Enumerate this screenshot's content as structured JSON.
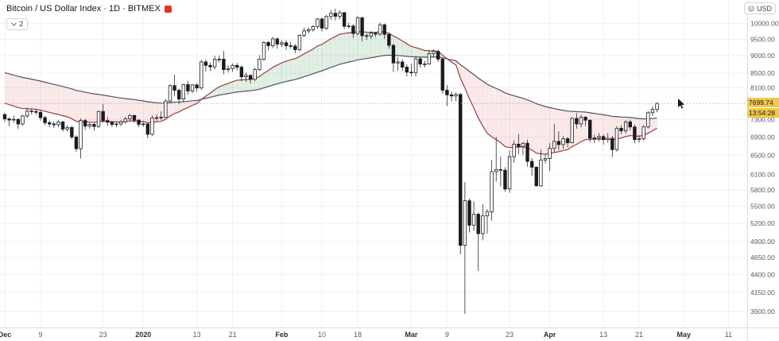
{
  "header": {
    "symbol_title": "Bitcoin / US Dollar Index · 1D · BITMEX",
    "legend_collapsed_count": "2",
    "currency_label": "USD"
  },
  "price_tag": {
    "price": "7699.74",
    "countdown": "13:54:28"
  },
  "colors": {
    "up": "#ffffff",
    "down": "#1a1a1f",
    "border": "#1a1a1f",
    "wick": "#2b2b30",
    "grid": "#eef1f6",
    "axis_text": "#565b66",
    "axis_border": "#d8dce3",
    "fast_ma": "#9c3d3d",
    "slow_ma": "#52525c",
    "fill_up": "rgba(96,169,107,0.18)",
    "fill_down": "rgba(233,124,124,0.16)",
    "last_price_line": "#9aa0a6",
    "tag_bg": "#f2c84b"
  },
  "chart_data": {
    "type": "candlestick",
    "title": "Bitcoin / US Dollar Index",
    "interval": "1D",
    "exchange": "BITMEX",
    "scale": "log",
    "last_price": 7699.74,
    "price_axis": {
      "min": 3700,
      "max": 10800,
      "labels": [
        10000,
        9500,
        9000,
        8500,
        8100,
        7700,
        7300,
        6900,
        6500,
        6100,
        5800,
        5500,
        5200,
        4900,
        4650,
        4400,
        4150,
        3900
      ]
    },
    "time_axis": {
      "ticks": [
        {
          "label": "Dec",
          "i": 0,
          "major": true
        },
        {
          "label": "9",
          "i": 8,
          "major": false
        },
        {
          "label": "23",
          "i": 22,
          "major": false
        },
        {
          "label": "2020",
          "i": 31,
          "major": true
        },
        {
          "label": "13",
          "i": 43,
          "major": false
        },
        {
          "label": "21",
          "i": 51,
          "major": false
        },
        {
          "label": "Feb",
          "i": 62,
          "major": true
        },
        {
          "label": "10",
          "i": 71,
          "major": false
        },
        {
          "label": "18",
          "i": 79,
          "major": false
        },
        {
          "label": "Mar",
          "i": 91,
          "major": true
        },
        {
          "label": "9",
          "i": 99,
          "major": false
        },
        {
          "label": "23",
          "i": 113,
          "major": false
        },
        {
          "label": "Apr",
          "i": 122,
          "major": true
        },
        {
          "label": "13",
          "i": 134,
          "major": false
        },
        {
          "label": "21",
          "i": 142,
          "major": false
        },
        {
          "label": "May",
          "i": 152,
          "major": true
        },
        {
          "label": "11",
          "i": 162,
          "major": false
        }
      ]
    },
    "indicators": {
      "fast_ma": {
        "period": 20,
        "seed": 7750
      },
      "slow_ma": {
        "period": 70,
        "seed": 8550
      }
    },
    "candles": [
      [
        7424,
        7470,
        7250,
        7320
      ],
      [
        7320,
        7350,
        7150,
        7293
      ],
      [
        7293,
        7400,
        7230,
        7310
      ],
      [
        7310,
        7330,
        7080,
        7200
      ],
      [
        7200,
        7420,
        7160,
        7390
      ],
      [
        7390,
        7590,
        7340,
        7510
      ],
      [
        7510,
        7570,
        7430,
        7500
      ],
      [
        7500,
        7560,
        7420,
        7480
      ],
      [
        7480,
        7520,
        7280,
        7350
      ],
      [
        7350,
        7390,
        7170,
        7230
      ],
      [
        7230,
        7280,
        7120,
        7200
      ],
      [
        7200,
        7260,
        7100,
        7180
      ],
      [
        7180,
        7290,
        7130,
        7250
      ],
      [
        7250,
        7270,
        7020,
        7080
      ],
      [
        7080,
        7170,
        7030,
        7120
      ],
      [
        7120,
        7150,
        6850,
        6900
      ],
      [
        6900,
        6940,
        6575,
        6640
      ],
      [
        6640,
        7330,
        6430,
        7280
      ],
      [
        7280,
        7320,
        7060,
        7150
      ],
      [
        7150,
        7230,
        7090,
        7190
      ],
      [
        7190,
        7220,
        7040,
        7140
      ],
      [
        7140,
        7520,
        7110,
        7500
      ],
      [
        7500,
        7690,
        7230,
        7280
      ],
      [
        7280,
        7360,
        7150,
        7240
      ],
      [
        7240,
        7270,
        7130,
        7190
      ],
      [
        7190,
        7240,
        7120,
        7200
      ],
      [
        7200,
        7290,
        7150,
        7250
      ],
      [
        7250,
        7370,
        7200,
        7320
      ],
      [
        7320,
        7440,
        7280,
        7400
      ],
      [
        7400,
        7430,
        7220,
        7290
      ],
      [
        7290,
        7320,
        7130,
        7190
      ],
      [
        7190,
        7260,
        7130,
        7200
      ],
      [
        7200,
        7220,
        6870,
        6960
      ],
      [
        6960,
        7400,
        6920,
        7340
      ],
      [
        7340,
        7430,
        7270,
        7350
      ],
      [
        7350,
        7500,
        7290,
        7360
      ],
      [
        7360,
        7810,
        7340,
        7760
      ],
      [
        7760,
        8200,
        7710,
        8160
      ],
      [
        8160,
        8460,
        7880,
        8040
      ],
      [
        8040,
        8080,
        7680,
        7810
      ],
      [
        7810,
        8210,
        7730,
        8190
      ],
      [
        8190,
        8290,
        7920,
        8020
      ],
      [
        8020,
        8200,
        7960,
        8180
      ],
      [
        8180,
        8230,
        8000,
        8100
      ],
      [
        8100,
        8880,
        8050,
        8820
      ],
      [
        8820,
        8890,
        8550,
        8720
      ],
      [
        8720,
        8800,
        8560,
        8680
      ],
      [
        8680,
        9000,
        8610,
        8900
      ],
      [
        8900,
        9010,
        8800,
        8900
      ],
      [
        8900,
        9150,
        8470,
        8600
      ],
      [
        8600,
        8720,
        8520,
        8630
      ],
      [
        8630,
        8780,
        8540,
        8720
      ],
      [
        8720,
        8790,
        8580,
        8670
      ],
      [
        8670,
        8730,
        8280,
        8400
      ],
      [
        8400,
        8520,
        8260,
        8440
      ],
      [
        8440,
        8470,
        8220,
        8330
      ],
      [
        8330,
        8650,
        8280,
        8600
      ],
      [
        8600,
        9020,
        8560,
        8900
      ],
      [
        8900,
        9430,
        8850,
        9400
      ],
      [
        9400,
        9440,
        9160,
        9300
      ],
      [
        9300,
        9570,
        9230,
        9510
      ],
      [
        9510,
        9550,
        9210,
        9350
      ],
      [
        9350,
        9460,
        9260,
        9390
      ],
      [
        9390,
        9470,
        9170,
        9300
      ],
      [
        9300,
        9410,
        9210,
        9290
      ],
      [
        9290,
        9350,
        9070,
        9180
      ],
      [
        9180,
        9650,
        9130,
        9620
      ],
      [
        9620,
        9860,
        9560,
        9760
      ],
      [
        9760,
        9870,
        9680,
        9800
      ],
      [
        9800,
        9950,
        9740,
        9900
      ],
      [
        9900,
        10180,
        9830,
        10150
      ],
      [
        10150,
        10190,
        9740,
        9850
      ],
      [
        9850,
        10290,
        9800,
        10230
      ],
      [
        10230,
        10460,
        10120,
        10340
      ],
      [
        10340,
        10500,
        10100,
        10240
      ],
      [
        10240,
        10440,
        10140,
        10360
      ],
      [
        10360,
        10390,
        9820,
        9910
      ],
      [
        9910,
        10030,
        9840,
        9920
      ],
      [
        9920,
        9980,
        9540,
        9680
      ],
      [
        9680,
        10250,
        9620,
        10190
      ],
      [
        10190,
        10220,
        9430,
        9610
      ],
      [
        9610,
        9690,
        9480,
        9600
      ],
      [
        9600,
        9750,
        9510,
        9690
      ],
      [
        9690,
        9730,
        9570,
        9660
      ],
      [
        9660,
        10030,
        9610,
        9960
      ],
      [
        9960,
        10000,
        9510,
        9650
      ],
      [
        9650,
        9710,
        9210,
        9310
      ],
      [
        9310,
        9360,
        8530,
        8790
      ],
      [
        8790,
        8950,
        8570,
        8820
      ],
      [
        8820,
        8890,
        8560,
        8670
      ],
      [
        8670,
        8750,
        8410,
        8530
      ],
      [
        8530,
        8770,
        8420,
        8520
      ],
      [
        8520,
        8960,
        8410,
        8910
      ],
      [
        8910,
        8960,
        8660,
        8760
      ],
      [
        8760,
        8850,
        8660,
        8760
      ],
      [
        8760,
        9170,
        8740,
        9060
      ],
      [
        9060,
        9190,
        8980,
        9130
      ],
      [
        9130,
        9180,
        8820,
        8900
      ],
      [
        8900,
        8950,
        7950,
        8040
      ],
      [
        8040,
        8170,
        7630,
        7920
      ],
      [
        7920,
        8010,
        7750,
        7890
      ],
      [
        7890,
        7980,
        7760,
        7930
      ],
      [
        7930,
        7970,
        4700,
        4840
      ],
      [
        4840,
        5950,
        3870,
        5600
      ],
      [
        5600,
        5640,
        5050,
        5170
      ],
      [
        5170,
        5590,
        5080,
        5360
      ],
      [
        5360,
        5390,
        4450,
        5030
      ],
      [
        5030,
        5540,
        4920,
        5330
      ],
      [
        5330,
        5450,
        5030,
        5400
      ],
      [
        5400,
        6400,
        5250,
        6160
      ],
      [
        6160,
        6900,
        5960,
        6200
      ],
      [
        6200,
        6470,
        5870,
        6190
      ],
      [
        6190,
        6250,
        5770,
        5820
      ],
      [
        5820,
        6600,
        5750,
        6470
      ],
      [
        6470,
        6820,
        6340,
        6740
      ],
      [
        6740,
        6970,
        6520,
        6690
      ],
      [
        6690,
        6790,
        6500,
        6760
      ],
      [
        6760,
        6840,
        6260,
        6370
      ],
      [
        6370,
        6440,
        6080,
        6250
      ],
      [
        6250,
        6270,
        5870,
        5880
      ],
      [
        5880,
        6620,
        5860,
        6400
      ],
      [
        6400,
        6530,
        6330,
        6430
      ],
      [
        6430,
        6760,
        6170,
        6650
      ],
      [
        6650,
        7200,
        6550,
        6800
      ],
      [
        6800,
        7030,
        6610,
        6730
      ],
      [
        6730,
        6920,
        6640,
        6860
      ],
      [
        6860,
        6900,
        6670,
        6770
      ],
      [
        6770,
        7360,
        6760,
        7330
      ],
      [
        7330,
        7460,
        7090,
        7200
      ],
      [
        7200,
        7420,
        7120,
        7360
      ],
      [
        7360,
        7390,
        7150,
        7290
      ],
      [
        7290,
        7310,
        6780,
        6870
      ],
      [
        6870,
        6950,
        6760,
        6880
      ],
      [
        6880,
        6990,
        6800,
        6910
      ],
      [
        6910,
        6960,
        6730,
        6840
      ],
      [
        6840,
        6990,
        6770,
        6870
      ],
      [
        6870,
        6920,
        6460,
        6620
      ],
      [
        6620,
        7150,
        6580,
        7100
      ],
      [
        7100,
        7170,
        6960,
        7040
      ],
      [
        7040,
        7290,
        6980,
        7250
      ],
      [
        7250,
        7300,
        7050,
        7130
      ],
      [
        7130,
        7190,
        6760,
        6840
      ],
      [
        6840,
        6940,
        6770,
        6860
      ],
      [
        6860,
        7170,
        6820,
        7130
      ],
      [
        7130,
        7510,
        7090,
        7470
      ],
      [
        7470,
        7620,
        7390,
        7550
      ],
      [
        7550,
        7720,
        7480,
        7699.74
      ]
    ]
  }
}
